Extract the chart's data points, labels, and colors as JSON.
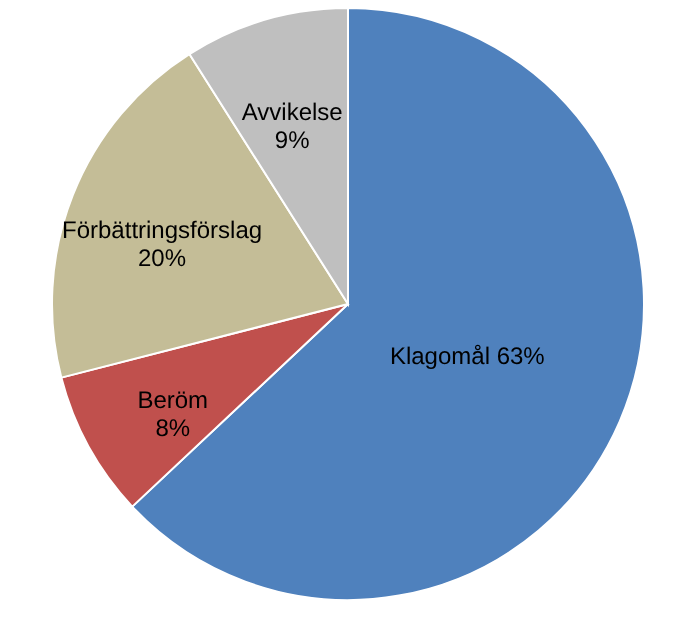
{
  "chart_data": {
    "type": "pie",
    "categories": [
      "Klagomål",
      "Beröm",
      "Förbättringsförslag",
      "Avvikelse"
    ],
    "values": [
      63,
      8,
      20,
      9
    ],
    "value_labels": [
      "63%",
      "8%",
      "20%",
      "9%"
    ],
    "colors": [
      "#4f81bd",
      "#c0504d",
      "#c4bd97",
      "#bfbfbf"
    ],
    "legend": false
  }
}
